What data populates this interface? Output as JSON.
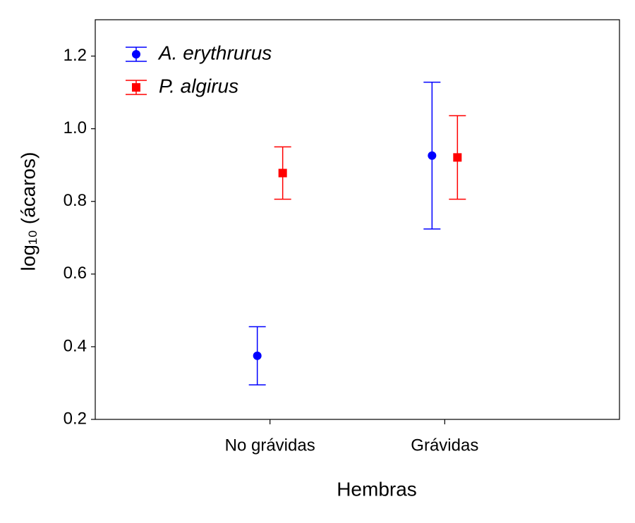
{
  "chart_data": {
    "type": "errorbar",
    "xlabel": "Hembras",
    "ylabel": "log₁₀ (ácaros)",
    "categories": [
      "No grávidas",
      "Grávidas"
    ],
    "series": [
      {
        "name": "A. erythrurus",
        "color": "#0000ff",
        "marker": "circle",
        "values": [
          0.375,
          0.926
        ],
        "errors": [
          0.08,
          0.202
        ]
      },
      {
        "name": "P. algirus",
        "color": "#ff0000",
        "marker": "square",
        "values": [
          0.878,
          0.921
        ],
        "errors": [
          0.072,
          0.115
        ]
      }
    ],
    "ylim": [
      0.2,
      1.3
    ],
    "yticks": [
      0.2,
      0.4,
      0.6,
      0.8,
      {
        "value": 1,
        "label": "1.0"
      },
      1.2
    ],
    "legend": "upper-left",
    "grid": false
  }
}
